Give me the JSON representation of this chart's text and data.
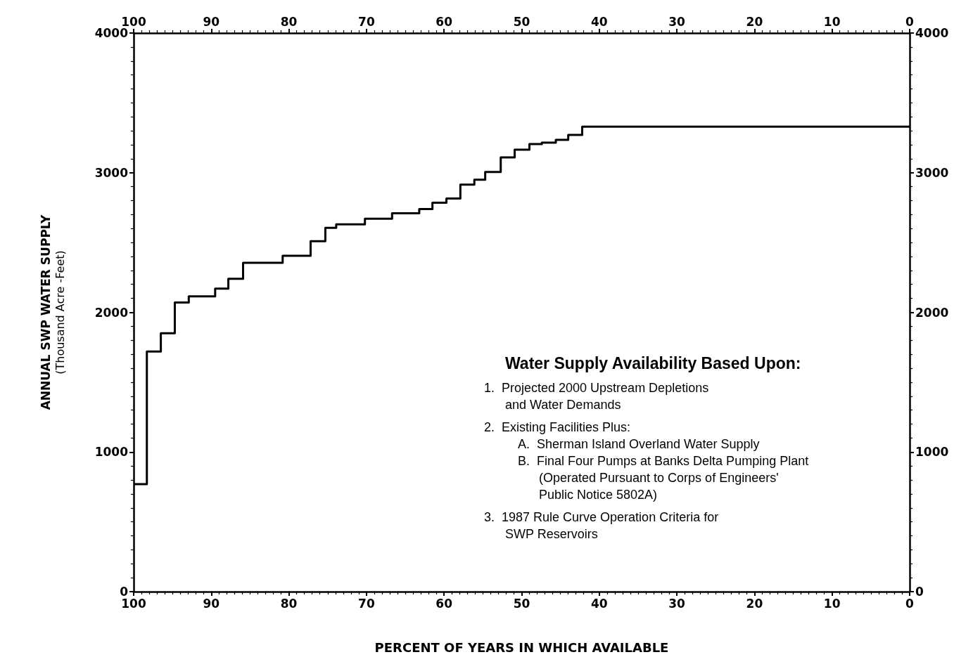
{
  "chart_data": {
    "type": "step",
    "xlabel": "PERCENT OF YEARS IN WHICH AVAILABLE",
    "ylabel": "ANNUAL SWP WATER SUPPLY\n(Thousand Acre -Feet)",
    "x": [
      100,
      98.3,
      96.5,
      94.7,
      92.9,
      89.5,
      87.8,
      85.9,
      80.8,
      77.2,
      75.3,
      73.9,
      70.2,
      66.7,
      63.2,
      61.5,
      59.7,
      57.9,
      56.1,
      54.7,
      52.7,
      50.9,
      49.0,
      47.4,
      45.6,
      44.0,
      42.2,
      0
    ],
    "series": [
      {
        "color": "#000000",
        "values": [
          770,
          1720,
          1850,
          2070,
          2115,
          2170,
          2240,
          2355,
          2405,
          2510,
          2605,
          2630,
          2670,
          2710,
          2740,
          2785,
          2815,
          2915,
          2950,
          3005,
          3110,
          3165,
          3205,
          3215,
          3235,
          3270,
          3330,
          3330
        ]
      }
    ],
    "xlim": [
      100,
      0
    ],
    "xticks": [
      100,
      90,
      80,
      70,
      60,
      50,
      40,
      30,
      20,
      10,
      0
    ],
    "x2lim": [
      100,
      0
    ],
    "x2ticks": [
      100,
      90,
      80,
      70,
      60,
      50,
      40,
      30,
      20,
      10,
      0
    ],
    "ylim": [
      0,
      4000
    ],
    "yticks": [
      0,
      1000,
      2000,
      3000,
      4000
    ],
    "y2lim": [
      0,
      4000
    ],
    "y2ticks": [
      0,
      1000,
      2000,
      3000,
      4000
    ],
    "grid": false,
    "marker": "none",
    "line_style": "solid",
    "annotations": [
      "Water Supply Availability Based Upon:",
      "1.  Projected 2000 Upstream Depletions",
      "and Water Demands",
      "2.  Existing Facilities Plus:",
      "A.  Sherman Island Overland Water Supply",
      "B.  Final Four Pumps at Banks Delta Pumping Plant",
      "(Operated Pursuant to Corps of Engineers'",
      "Public Notice 5802A)",
      "3.  1987 Rule Curve Operation Criteria for",
      "SWP Reservoirs"
    ]
  }
}
